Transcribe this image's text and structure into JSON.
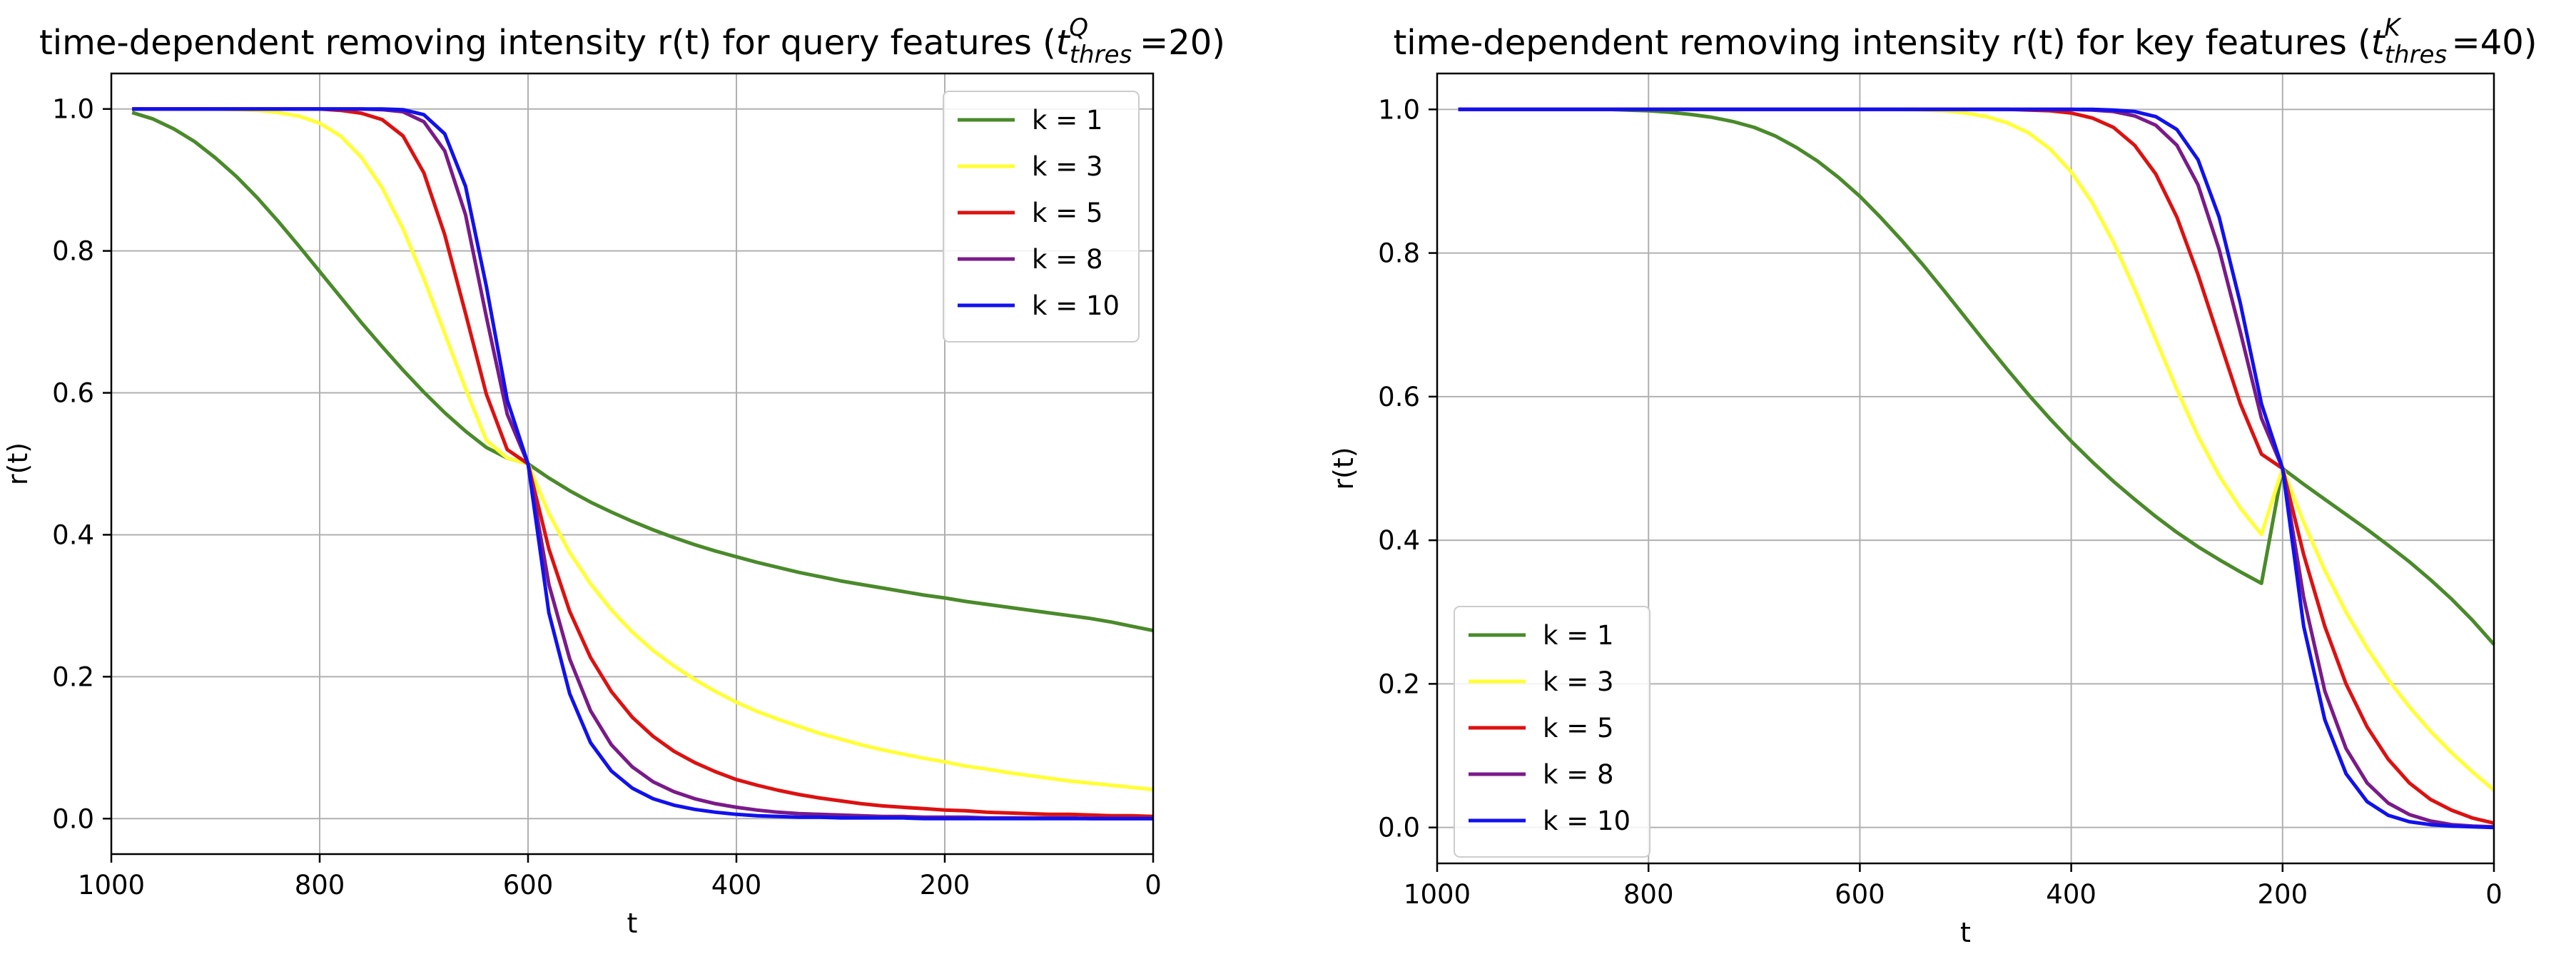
{
  "chart_data": [
    {
      "type": "line",
      "title_prefix": "time-dependent removing intensity r(t) for query features (",
      "title_var": "t",
      "title_sub": "thres",
      "title_sup": "Q",
      "title_suffix": "=20)",
      "xlabel": "t",
      "ylabel": "r(t)",
      "xlim": [
        1000,
        0
      ],
      "ylim": [
        -0.05,
        1.05
      ],
      "x_ticks": [
        1000,
        800,
        600,
        400,
        200,
        0
      ],
      "y_ticks": [
        0.0,
        0.2,
        0.4,
        0.6,
        0.8,
        1.0
      ],
      "x_tick_labels": [
        "1000",
        "800",
        "600",
        "400",
        "200",
        "0"
      ],
      "y_tick_labels": [
        "0.0",
        "0.2",
        "0.4",
        "0.6",
        "0.8",
        "1.0"
      ],
      "grid": true,
      "legend_position": "top-right",
      "x": [
        980,
        960,
        940,
        920,
        900,
        880,
        860,
        840,
        820,
        800,
        780,
        760,
        740,
        720,
        700,
        680,
        660,
        640,
        620,
        600,
        580,
        560,
        540,
        520,
        500,
        480,
        460,
        440,
        420,
        400,
        380,
        360,
        340,
        320,
        300,
        280,
        260,
        240,
        220,
        200,
        180,
        160,
        140,
        120,
        100,
        80,
        60,
        40,
        20,
        0
      ],
      "series": [
        {
          "name": "k = 1",
          "color": "#4a8a2a",
          "values": [
            0.995,
            0.986,
            0.972,
            0.954,
            0.931,
            0.905,
            0.875,
            0.842,
            0.807,
            0.771,
            0.735,
            0.699,
            0.665,
            0.632,
            0.601,
            0.572,
            0.546,
            0.523,
            0.508,
            0.5,
            0.48,
            0.462,
            0.446,
            0.432,
            0.419,
            0.407,
            0.396,
            0.386,
            0.377,
            0.369,
            0.361,
            0.354,
            0.347,
            0.341,
            0.335,
            0.33,
            0.325,
            0.32,
            0.315,
            0.311,
            0.306,
            0.302,
            0.298,
            0.294,
            0.29,
            0.286,
            0.282,
            0.277,
            0.271,
            0.265
          ]
        },
        {
          "name": "k = 3",
          "color": "#ffff33",
          "values": [
            1.0,
            1.0,
            1.0,
            1.0,
            1.0,
            0.999,
            0.998,
            0.995,
            0.99,
            0.98,
            0.962,
            0.932,
            0.889,
            0.831,
            0.761,
            0.684,
            0.606,
            0.533,
            0.508,
            0.5,
            0.43,
            0.375,
            0.331,
            0.294,
            0.263,
            0.237,
            0.215,
            0.196,
            0.179,
            0.164,
            0.151,
            0.14,
            0.13,
            0.12,
            0.112,
            0.104,
            0.097,
            0.091,
            0.085,
            0.08,
            0.074,
            0.07,
            0.065,
            0.061,
            0.057,
            0.053,
            0.05,
            0.047,
            0.044,
            0.041
          ]
        },
        {
          "name": "k = 5",
          "color": "#dd1111",
          "values": [
            1.0,
            1.0,
            1.0,
            1.0,
            1.0,
            1.0,
            1.0,
            1.0,
            1.0,
            1.0,
            0.998,
            0.994,
            0.985,
            0.962,
            0.91,
            0.823,
            0.712,
            0.598,
            0.52,
            0.5,
            0.38,
            0.292,
            0.227,
            0.179,
            0.143,
            0.116,
            0.095,
            0.079,
            0.066,
            0.055,
            0.047,
            0.04,
            0.034,
            0.029,
            0.025,
            0.021,
            0.018,
            0.016,
            0.014,
            0.012,
            0.011,
            0.009,
            0.008,
            0.007,
            0.006,
            0.006,
            0.005,
            0.004,
            0.004,
            0.003
          ]
        },
        {
          "name": "k = 8",
          "color": "#7a1a8a",
          "values": [
            1.0,
            1.0,
            1.0,
            1.0,
            1.0,
            1.0,
            1.0,
            1.0,
            1.0,
            1.0,
            1.0,
            1.0,
            0.999,
            0.996,
            0.982,
            0.941,
            0.851,
            0.707,
            0.57,
            0.5,
            0.33,
            0.225,
            0.152,
            0.104,
            0.073,
            0.052,
            0.038,
            0.028,
            0.021,
            0.016,
            0.012,
            0.009,
            0.007,
            0.006,
            0.005,
            0.004,
            0.003,
            0.003,
            0.002,
            0.002,
            0.002,
            0.001,
            0.001,
            0.001,
            0.001,
            0.001,
            0.0,
            0.0,
            0.0,
            0.0
          ]
        },
        {
          "name": "k = 10",
          "color": "#1111ee",
          "values": [
            1.0,
            1.0,
            1.0,
            1.0,
            1.0,
            1.0,
            1.0,
            1.0,
            1.0,
            1.0,
            1.0,
            1.0,
            1.0,
            0.999,
            0.992,
            0.965,
            0.891,
            0.75,
            0.59,
            0.5,
            0.29,
            0.176,
            0.107,
            0.067,
            0.043,
            0.028,
            0.019,
            0.013,
            0.009,
            0.006,
            0.004,
            0.003,
            0.002,
            0.002,
            0.001,
            0.001,
            0.001,
            0.001,
            0.0,
            0.0,
            0.0,
            0.0,
            0.0,
            0.0,
            0.0,
            0.0,
            0.0,
            0.0,
            0.0,
            0.0
          ]
        }
      ]
    },
    {
      "type": "line",
      "title_prefix": "time-dependent removing intensity r(t) for key features (",
      "title_var": "t",
      "title_sub": "thres",
      "title_sup": "K",
      "title_suffix": "=40)",
      "xlabel": "t",
      "ylabel": "r(t)",
      "xlim": [
        1000,
        0
      ],
      "ylim": [
        -0.05,
        1.05
      ],
      "x_ticks": [
        1000,
        800,
        600,
        400,
        200,
        0
      ],
      "y_ticks": [
        0.0,
        0.2,
        0.4,
        0.6,
        0.8,
        1.0
      ],
      "x_tick_labels": [
        "1000",
        "800",
        "600",
        "400",
        "200",
        "0"
      ],
      "y_tick_labels": [
        "0.0",
        "0.2",
        "0.4",
        "0.6",
        "0.8",
        "1.0"
      ],
      "grid": true,
      "legend_position": "bottom-left",
      "x": [
        980,
        960,
        940,
        920,
        900,
        880,
        860,
        840,
        820,
        800,
        780,
        760,
        740,
        720,
        700,
        680,
        660,
        640,
        620,
        600,
        580,
        560,
        540,
        520,
        500,
        480,
        460,
        440,
        420,
        400,
        380,
        360,
        340,
        320,
        300,
        280,
        260,
        240,
        220,
        200,
        180,
        160,
        140,
        120,
        100,
        80,
        60,
        40,
        20,
        0
      ],
      "series": [
        {
          "name": "k = 1",
          "color": "#4a8a2a",
          "values": [
            1.0,
            1.0,
            1.0,
            1.0,
            1.0,
            1.0,
            1.0,
            1.0,
            0.999,
            0.998,
            0.996,
            0.993,
            0.989,
            0.983,
            0.975,
            0.963,
            0.947,
            0.928,
            0.905,
            0.879,
            0.849,
            0.817,
            0.783,
            0.747,
            0.71,
            0.673,
            0.637,
            0.602,
            0.569,
            0.538,
            0.509,
            0.482,
            0.457,
            0.433,
            0.411,
            0.391,
            0.373,
            0.356,
            0.34,
            0.5,
            0.478,
            0.457,
            0.436,
            0.415,
            0.393,
            0.37,
            0.345,
            0.318,
            0.288,
            0.255
          ]
        },
        {
          "name": "k = 3",
          "color": "#ffff33",
          "values": [
            1.0,
            1.0,
            1.0,
            1.0,
            1.0,
            1.0,
            1.0,
            1.0,
            1.0,
            1.0,
            1.0,
            1.0,
            1.0,
            1.0,
            1.0,
            1.0,
            1.0,
            1.0,
            1.0,
            1.0,
            1.0,
            1.0,
            0.999,
            0.998,
            0.995,
            0.99,
            0.981,
            0.967,
            0.945,
            0.913,
            0.87,
            0.815,
            0.75,
            0.68,
            0.61,
            0.545,
            0.49,
            0.445,
            0.408,
            0.5,
            0.425,
            0.358,
            0.3,
            0.25,
            0.206,
            0.168,
            0.134,
            0.104,
            0.077,
            0.052
          ]
        },
        {
          "name": "k = 5",
          "color": "#dd1111",
          "values": [
            1.0,
            1.0,
            1.0,
            1.0,
            1.0,
            1.0,
            1.0,
            1.0,
            1.0,
            1.0,
            1.0,
            1.0,
            1.0,
            1.0,
            1.0,
            1.0,
            1.0,
            1.0,
            1.0,
            1.0,
            1.0,
            1.0,
            1.0,
            1.0,
            1.0,
            1.0,
            1.0,
            0.999,
            0.998,
            0.995,
            0.988,
            0.975,
            0.95,
            0.91,
            0.85,
            0.77,
            0.68,
            0.59,
            0.52,
            0.5,
            0.38,
            0.28,
            0.2,
            0.14,
            0.095,
            0.062,
            0.039,
            0.024,
            0.013,
            0.006
          ]
        },
        {
          "name": "k = 8",
          "color": "#7a1a8a",
          "values": [
            1.0,
            1.0,
            1.0,
            1.0,
            1.0,
            1.0,
            1.0,
            1.0,
            1.0,
            1.0,
            1.0,
            1.0,
            1.0,
            1.0,
            1.0,
            1.0,
            1.0,
            1.0,
            1.0,
            1.0,
            1.0,
            1.0,
            1.0,
            1.0,
            1.0,
            1.0,
            1.0,
            1.0,
            1.0,
            1.0,
            0.999,
            0.997,
            0.991,
            0.978,
            0.95,
            0.895,
            0.805,
            0.69,
            0.57,
            0.5,
            0.32,
            0.19,
            0.11,
            0.062,
            0.034,
            0.018,
            0.009,
            0.004,
            0.002,
            0.001
          ]
        },
        {
          "name": "k = 10",
          "color": "#1111ee",
          "values": [
            1.0,
            1.0,
            1.0,
            1.0,
            1.0,
            1.0,
            1.0,
            1.0,
            1.0,
            1.0,
            1.0,
            1.0,
            1.0,
            1.0,
            1.0,
            1.0,
            1.0,
            1.0,
            1.0,
            1.0,
            1.0,
            1.0,
            1.0,
            1.0,
            1.0,
            1.0,
            1.0,
            1.0,
            1.0,
            1.0,
            1.0,
            0.999,
            0.997,
            0.99,
            0.972,
            0.93,
            0.85,
            0.73,
            0.59,
            0.5,
            0.28,
            0.15,
            0.075,
            0.036,
            0.017,
            0.008,
            0.004,
            0.002,
            0.001,
            0.0
          ]
        }
      ]
    }
  ]
}
